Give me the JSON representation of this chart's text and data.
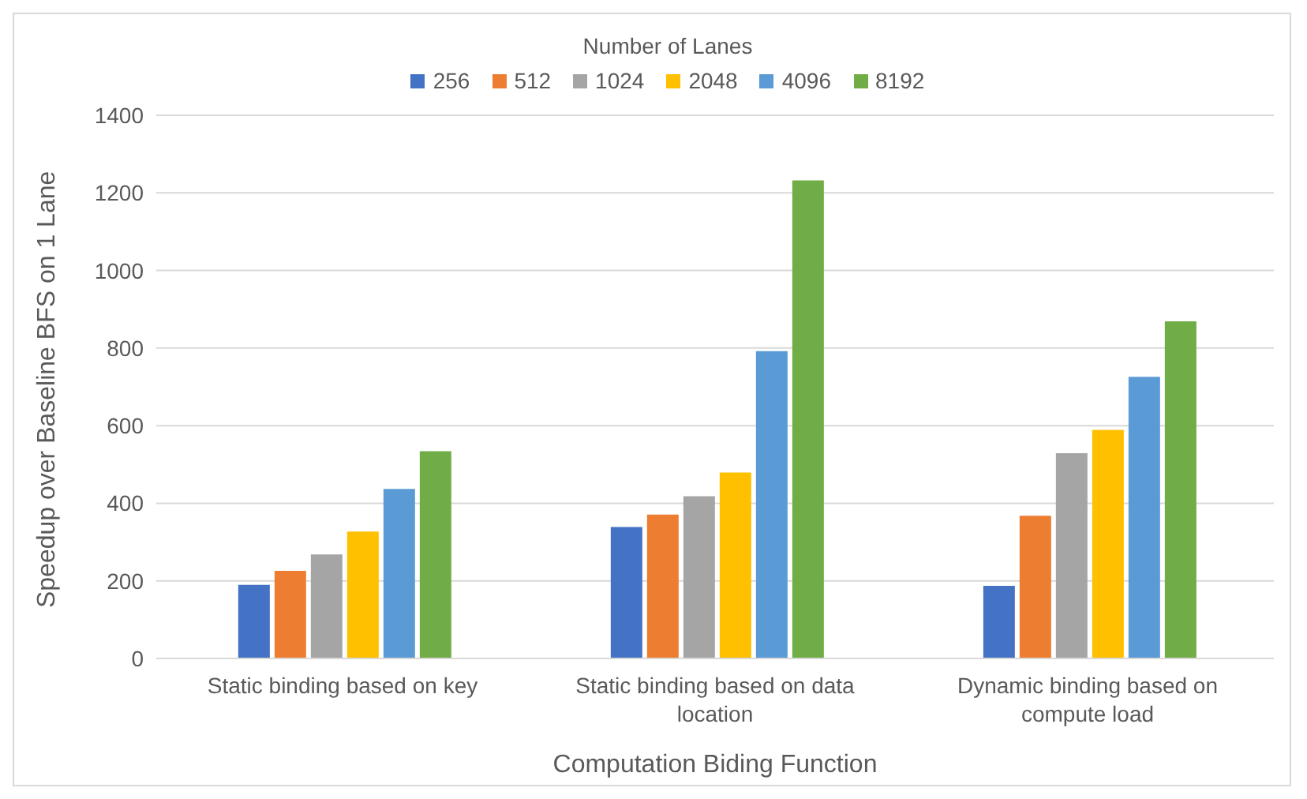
{
  "chart_data": {
    "type": "bar",
    "xlabel": "Computation Biding Function",
    "ylabel": "Speedup over Baseline BFS on 1 Lane",
    "legend_title": "Number of Lanes",
    "legend": "top",
    "categories": [
      "Static binding based on key",
      "Static binding based on data location",
      "Dynamic binding based on compute load"
    ],
    "series": [
      {
        "name": "256",
        "color": "#4472c4",
        "values": [
          190,
          339,
          187
        ]
      },
      {
        "name": "512",
        "color": "#ed7d31",
        "values": [
          226,
          371,
          368
        ]
      },
      {
        "name": "1024",
        "color": "#a5a5a5",
        "values": [
          268,
          418,
          529
        ]
      },
      {
        "name": "2048",
        "color": "#ffc000",
        "values": [
          327,
          479,
          589
        ]
      },
      {
        "name": "4096",
        "color": "#5b9bd5",
        "values": [
          437,
          792,
          726
        ]
      },
      {
        "name": "8192",
        "color": "#70ad47",
        "values": [
          534,
          1232,
          869
        ]
      }
    ],
    "ylim": [
      0,
      1400
    ],
    "yticks": [
      0,
      200,
      400,
      600,
      800,
      1000,
      1200,
      1400
    ],
    "grid": "y"
  }
}
